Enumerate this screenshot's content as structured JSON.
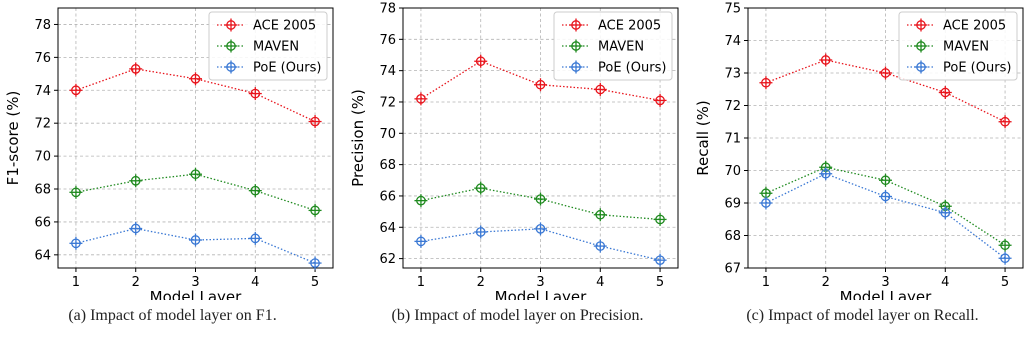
{
  "chart_data": [
    {
      "type": "line",
      "x": [
        1,
        2,
        3,
        4,
        5
      ],
      "xlabel": "Model Layer",
      "ylabel": "F1-score (%)",
      "ylim": [
        63.2,
        79
      ],
      "yticks": [
        64,
        66,
        68,
        70,
        72,
        74,
        76,
        78
      ],
      "grid": true,
      "legend_position": "top-right",
      "caption": "(a)  Impact of model layer on F1.",
      "series": [
        {
          "name": "ACE 2005",
          "color": "#e8141c",
          "values": [
            74.0,
            75.3,
            74.7,
            73.8,
            72.1
          ]
        },
        {
          "name": "MAVEN",
          "color": "#1f8a1f",
          "values": [
            67.8,
            68.5,
            68.9,
            67.9,
            66.7
          ]
        },
        {
          "name": "PoE (Ours)",
          "color": "#3a78d4",
          "values": [
            64.7,
            65.6,
            64.9,
            65.0,
            63.5
          ]
        }
      ]
    },
    {
      "type": "line",
      "x": [
        1,
        2,
        3,
        4,
        5
      ],
      "xlabel": "Model Layer",
      "ylabel": "Precision (%)",
      "ylim": [
        61.4,
        78
      ],
      "yticks": [
        62,
        64,
        66,
        68,
        70,
        72,
        74,
        76,
        78
      ],
      "grid": true,
      "legend_position": "top-right",
      "caption": "(b)  Impact of model layer on Precision.",
      "series": [
        {
          "name": "ACE 2005",
          "color": "#e8141c",
          "values": [
            72.2,
            74.6,
            73.1,
            72.8,
            72.1
          ]
        },
        {
          "name": "MAVEN",
          "color": "#1f8a1f",
          "values": [
            65.7,
            66.5,
            65.8,
            64.8,
            64.5
          ]
        },
        {
          "name": "PoE (Ours)",
          "color": "#3a78d4",
          "values": [
            63.1,
            63.7,
            63.9,
            62.8,
            61.9
          ]
        }
      ]
    },
    {
      "type": "line",
      "x": [
        1,
        2,
        3,
        4,
        5
      ],
      "xlabel": "Model Layer",
      "ylabel": "Recall (%)",
      "ylim": [
        67,
        75
      ],
      "yticks": [
        67,
        68,
        69,
        70,
        71,
        72,
        73,
        74,
        75
      ],
      "grid": true,
      "legend_position": "top-right",
      "caption": "(c)  Impact of model layer on Recall.",
      "series": [
        {
          "name": "ACE 2005",
          "color": "#e8141c",
          "values": [
            72.7,
            73.4,
            73.0,
            72.4,
            71.5
          ]
        },
        {
          "name": "MAVEN",
          "color": "#1f8a1f",
          "values": [
            69.3,
            70.1,
            69.7,
            68.9,
            67.7
          ]
        },
        {
          "name": "PoE (Ours)",
          "color": "#3a78d4",
          "values": [
            69.0,
            69.9,
            69.2,
            68.7,
            67.3
          ]
        }
      ]
    }
  ]
}
